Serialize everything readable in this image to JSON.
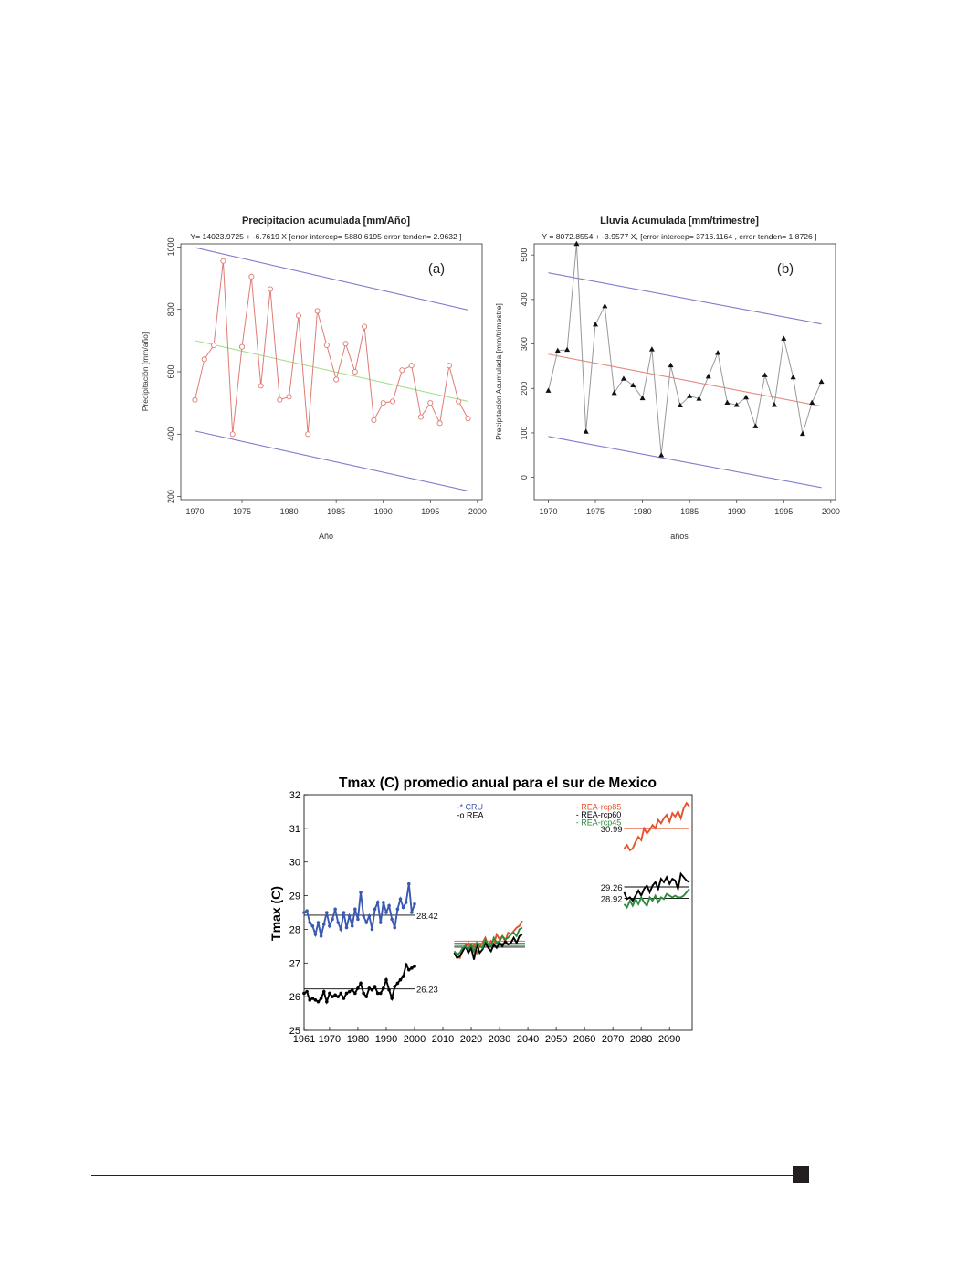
{
  "chart_data": [
    {
      "id": "a",
      "type": "line",
      "title": "Precipitacion acumulada [mm/Año]",
      "subtitle": "Y= 14023.9725 + -6.7619 X [error intercep= 5880.6195 error tenden= 2.9632 ]",
      "panel_label": "(a)",
      "xlabel": "Año",
      "ylabel": "Precipitación [mm/año]",
      "xlim": [
        1968.5,
        2000.5
      ],
      "ylim": [
        190,
        1010
      ],
      "x_ticks": [
        "1970",
        "1975",
        "1980",
        "1985",
        "1990",
        "1995",
        "2000"
      ],
      "y_ticks": [
        "200",
        "400",
        "600",
        "800",
        "1000"
      ],
      "x": [
        1970,
        1971,
        1972,
        1973,
        1974,
        1975,
        1976,
        1977,
        1978,
        1979,
        1980,
        1981,
        1982,
        1983,
        1984,
        1985,
        1986,
        1987,
        1988,
        1989,
        1990,
        1991,
        1992,
        1993,
        1994,
        1995,
        1996,
        1997,
        1998,
        1999
      ],
      "series": [
        {
          "values": [
            510,
            640,
            685,
            955,
            400,
            680,
            905,
            555,
            865,
            510,
            520,
            780,
            400,
            795,
            685,
            575,
            690,
            600,
            745,
            445,
            500,
            505,
            605,
            620,
            455,
            500,
            435,
            620,
            505,
            450
          ],
          "color": "#e07b74",
          "marker": "open-circle"
        },
        {
          "kind": "trend",
          "x": [
            1970,
            1999
          ],
          "values": [
            700,
            505
          ],
          "color": "#a6e08c"
        },
        {
          "kind": "upper",
          "x": [
            1970,
            1999
          ],
          "values": [
            998,
            798
          ],
          "color": "#7d7dcc"
        },
        {
          "kind": "lower",
          "x": [
            1970,
            1999
          ],
          "values": [
            410,
            218
          ],
          "color": "#7d7dcc"
        }
      ]
    },
    {
      "id": "b",
      "type": "line",
      "title": "Lluvia Acumulada [mm/trimestre]",
      "subtitle": "Y = 8072.8554 + -3.9577 X, [error intercep= 3716.1164 , error tenden= 1.8726 ]",
      "panel_label": "(b)",
      "xlabel": "años",
      "ylabel": "Precipitación Acumulada [mm/trimestre]",
      "xlim": [
        1968.5,
        2000.5
      ],
      "ylim": [
        -50,
        525
      ],
      "x_ticks": [
        "1970",
        "1975",
        "1980",
        "1985",
        "1990",
        "1995",
        "2000"
      ],
      "y_ticks": [
        "0",
        "100",
        "200",
        "300",
        "400",
        "500"
      ],
      "x": [
        1970,
        1971,
        1972,
        1973,
        1974,
        1975,
        1976,
        1977,
        1978,
        1979,
        1980,
        1981,
        1982,
        1983,
        1984,
        1985,
        1986,
        1987,
        1988,
        1989,
        1990,
        1991,
        1992,
        1993,
        1994,
        1995,
        1996,
        1997,
        1998,
        1999
      ],
      "series": [
        {
          "values": [
            195,
            285,
            287,
            525,
            103,
            344,
            385,
            190,
            222,
            207,
            178,
            288,
            50,
            252,
            162,
            183,
            177,
            227,
            280,
            168,
            163,
            180,
            115,
            230,
            163,
            312,
            225,
            98,
            168,
            215
          ],
          "color": "#999999",
          "marker": "filled-triangle"
        },
        {
          "kind": "trend",
          "x": [
            1970,
            1999
          ],
          "values": [
            277,
            160
          ],
          "color": "#e48a7e"
        },
        {
          "kind": "upper",
          "x": [
            1970,
            1999
          ],
          "values": [
            460,
            345
          ],
          "color": "#7d7dcc"
        },
        {
          "kind": "lower",
          "x": [
            1970,
            1999
          ],
          "values": [
            92,
            -23
          ],
          "color": "#7d7dcc"
        }
      ]
    },
    {
      "id": "c",
      "type": "line",
      "title": "Tmax (C) promedio anual para el sur de Mexico",
      "xlabel": "",
      "ylabel": "Tmax (C)",
      "xlim": [
        1961,
        2098
      ],
      "ylim": [
        25,
        32
      ],
      "x_ticks": [
        "1961",
        "1970",
        "1980",
        "1990",
        "2000",
        "2010",
        "2020",
        "2030",
        "2040",
        "2050",
        "2060",
        "2070",
        "2080",
        "2090"
      ],
      "y_ticks": [
        "25",
        "26",
        "27",
        "28",
        "29",
        "30",
        "31",
        "32"
      ],
      "legend": [
        {
          "label": "-* CRU",
          "color": "#3a5ab0"
        },
        {
          "label": "-o REA",
          "color": "#000000"
        }
      ],
      "legend2": [
        {
          "label": "- REA-rcp85",
          "color": "#e4532c"
        },
        {
          "label": "- REA-rcp60",
          "color": "#000000"
        },
        {
          "label": "- REA-rcp45",
          "color": "#2e8b3e"
        }
      ],
      "series": [
        {
          "name": "CRU",
          "color": "#3a5ab0",
          "x_start": 1961,
          "values": [
            28.5,
            28.55,
            28.2,
            28.1,
            27.85,
            28.2,
            27.8,
            28.15,
            28.5,
            28.1,
            28.3,
            28.6,
            28.2,
            28.0,
            28.5,
            28.05,
            28.4,
            28.1,
            28.6,
            28.3,
            29.1,
            28.4,
            28.2,
            28.4,
            28.0,
            28.6,
            28.8,
            28.2,
            28.8,
            28.5,
            28.7,
            28.3,
            28.05,
            28.6,
            28.9,
            28.65,
            28.8,
            29.35,
            28.5,
            28.75
          ]
        },
        {
          "name": "REA",
          "color": "#000000",
          "x_start": 1961,
          "values": [
            26.1,
            26.15,
            25.9,
            25.95,
            25.9,
            25.85,
            25.95,
            26.15,
            25.85,
            26.1,
            26.0,
            26.05,
            26.0,
            26.1,
            25.95,
            26.1,
            26.15,
            26.2,
            26.1,
            26.25,
            26.4,
            26.1,
            26.0,
            26.25,
            26.2,
            26.3,
            26.1,
            26.1,
            26.25,
            26.5,
            26.2,
            25.95,
            26.3,
            26.4,
            26.5,
            26.6,
            26.95,
            26.8,
            26.85,
            26.9
          ]
        },
        {
          "name": "REA-rcp85 2015-2039",
          "color": "#e4532c",
          "x_start": 2014,
          "values": [
            27.3,
            27.2,
            27.15,
            27.4,
            27.5,
            27.6,
            27.4,
            27.55,
            27.3,
            27.5,
            27.6,
            27.75,
            27.5,
            27.65,
            27.55,
            27.85,
            27.7,
            27.8,
            27.65,
            27.9,
            27.85,
            27.95,
            28.05,
            28.1,
            28.25
          ]
        },
        {
          "name": "REA-rcp60 2015-2039",
          "color": "#000000",
          "x_start": 2014,
          "values": [
            27.3,
            27.15,
            27.2,
            27.35,
            27.5,
            27.3,
            27.45,
            27.1,
            27.55,
            27.3,
            27.4,
            27.6,
            27.45,
            27.35,
            27.55,
            27.45,
            27.6,
            27.5,
            27.65,
            27.55,
            27.6,
            27.75,
            27.6,
            27.8,
            27.85
          ]
        },
        {
          "name": "REA-rcp45 2015-2039",
          "color": "#2e8b3e",
          "x_start": 2014,
          "values": [
            27.35,
            27.25,
            27.3,
            27.45,
            27.5,
            27.4,
            27.55,
            27.35,
            27.6,
            27.5,
            27.45,
            27.7,
            27.55,
            27.5,
            27.75,
            27.6,
            27.65,
            27.8,
            27.7,
            27.75,
            27.85,
            27.9,
            27.8,
            28.0,
            28.05
          ]
        },
        {
          "name": "REA-rcp85 2074-2097",
          "color": "#e4532c",
          "x_start": 2074,
          "values": [
            30.4,
            30.5,
            30.35,
            30.4,
            30.6,
            30.75,
            30.65,
            31.0,
            30.85,
            30.95,
            31.1,
            31.0,
            31.25,
            31.15,
            31.3,
            31.4,
            31.2,
            31.45,
            31.35,
            31.5,
            31.3,
            31.6,
            31.75,
            31.65
          ]
        },
        {
          "name": "REA-rcp60 2074-2097",
          "color": "#000000",
          "x_start": 2074,
          "values": [
            29.1,
            28.9,
            28.95,
            28.85,
            29.0,
            29.15,
            29.0,
            29.2,
            29.3,
            29.1,
            29.3,
            29.4,
            29.2,
            29.5,
            29.4,
            29.55,
            29.35,
            29.5,
            29.45,
            29.2,
            29.65,
            29.55,
            29.45,
            29.4
          ]
        },
        {
          "name": "REA-rcp45 2074-2097",
          "color": "#2e8b3e",
          "x_start": 2074,
          "values": [
            28.75,
            28.65,
            28.85,
            28.7,
            28.9,
            28.75,
            28.95,
            28.8,
            28.7,
            28.95,
            28.85,
            29.0,
            28.8,
            28.95,
            28.9,
            29.05,
            29.0,
            28.95,
            29.0,
            28.95,
            28.95,
            29.0,
            29.1,
            29.2
          ]
        }
      ],
      "reference_lines": [
        {
          "x": [
            1961,
            2000
          ],
          "value": 28.42,
          "label": "28.42",
          "color": "#000000"
        },
        {
          "x": [
            1961,
            2000
          ],
          "value": 26.23,
          "label": "26.23",
          "color": "#000000"
        },
        {
          "x": [
            2074,
            2097
          ],
          "value": 30.99,
          "label": "30.99",
          "color": "#e4532c"
        },
        {
          "x": [
            2074,
            2097
          ],
          "value": 29.26,
          "label": "29.26",
          "color": "#000000"
        },
        {
          "x": [
            2074,
            2097
          ],
          "value": 28.92,
          "label": "28.92",
          "color": "#000000"
        },
        {
          "x": [
            2014,
            2039
          ],
          "value": 27.65,
          "color": "#e4532c"
        },
        {
          "x": [
            2014,
            2039
          ],
          "value": 27.58,
          "color": "#000000"
        },
        {
          "x": [
            2014,
            2039
          ],
          "value": 27.52,
          "color": "#2e8b3e"
        },
        {
          "x": [
            2014,
            2039
          ],
          "value": 27.47,
          "color": "#000000"
        }
      ]
    }
  ]
}
